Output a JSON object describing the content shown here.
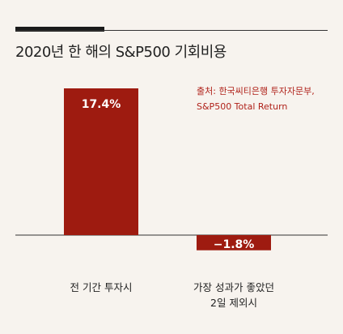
{
  "title": "2020년 한 해의 S&P500 기회비용",
  "source": {
    "line1": "출처: 한국씨티은행 투자자문부,",
    "line2": "S&P500 Total Return"
  },
  "colors": {
    "bar": "#9e1b10",
    "source_text": "#b0221a",
    "background": "#f7f3ee"
  },
  "chart_data": {
    "type": "bar",
    "categories": [
      "전 기간 투자시",
      "가장 성과가 좋았던\n2일 제외시"
    ],
    "values": [
      17.4,
      -1.8
    ],
    "data_labels": [
      "17.4%",
      "−1.8%"
    ],
    "title": "2020년 한 해의 S&P500 기회비용",
    "xlabel": "",
    "ylabel": "",
    "ylim": [
      -4,
      20
    ],
    "grid": false,
    "legend": "none"
  }
}
